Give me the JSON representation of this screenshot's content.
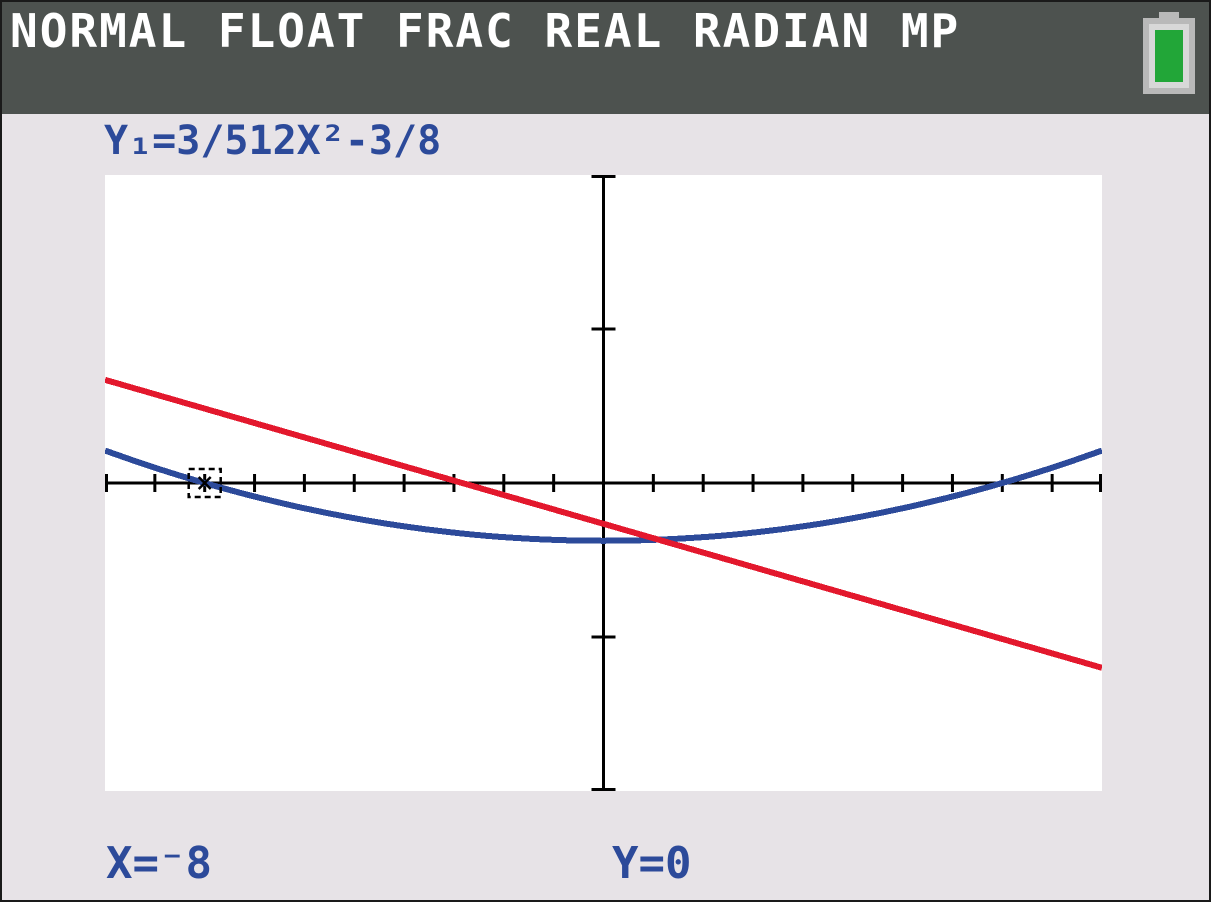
{
  "status_bar": {
    "mode_text": "NORMAL FLOAT FRAC REAL RADIAN MP",
    "battery_icon": "battery-full-icon",
    "battery_color": "#22a638"
  },
  "equation_label": "Y₁=3/512X²-3/8",
  "readout": {
    "x": "X=⁻8",
    "y": "Y=0"
  },
  "chart_data": {
    "type": "line",
    "title": "",
    "xlabel": "",
    "ylabel": "",
    "xlim": [
      -10,
      10
    ],
    "ylim": [
      -2,
      2
    ],
    "x_tick_step": 1,
    "y_tick_step": 1,
    "grid": false,
    "series": [
      {
        "name": "Y₁=3/512X²-3/8",
        "color": "#2c4a9a",
        "formula": "3/512*x^2-3/8",
        "x": [
          -10,
          -8,
          -6,
          -4,
          -2,
          0,
          2,
          4,
          6,
          8,
          10
        ],
        "y": [
          0.211,
          0,
          -0.164,
          -0.281,
          -0.352,
          -0.375,
          -0.352,
          -0.281,
          -0.164,
          0,
          0.211
        ]
      },
      {
        "color": "#e3182d",
        "x": [
          -10,
          10
        ],
        "y": [
          0.67,
          -1.2
        ]
      }
    ],
    "cursor": {
      "x": -8,
      "y": 0
    }
  }
}
